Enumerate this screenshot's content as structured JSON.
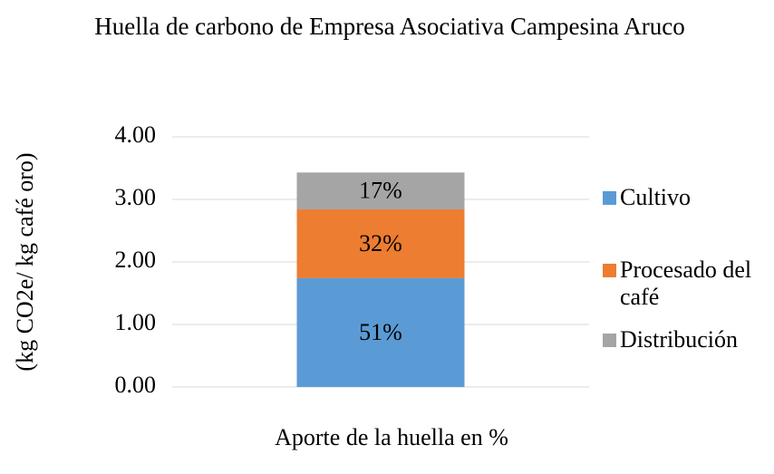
{
  "chart_data": {
    "type": "stacked_bar",
    "title": "Huella de carbono de Empresa Asociativa Campesina Aruco",
    "y_label": "(kg CO2e/ kg café oro)",
    "x_label": "Aporte de la huella en %",
    "categories": [
      null
    ],
    "series": [
      {
        "name": "Cultivo",
        "color": "#5b9bd5",
        "values": [
          1.74
        ],
        "value_labels": [
          "51%"
        ]
      },
      {
        "name": "Procesado del café",
        "color": "#ed7d31",
        "values": [
          1.1
        ],
        "value_labels": [
          "32%"
        ]
      },
      {
        "name": "Distribución",
        "color": "#a5a5a5",
        "values": [
          0.59
        ],
        "value_labels": [
          "17%"
        ]
      }
    ],
    "ylim": [
      0,
      4
    ],
    "yticks": [
      {
        "value": 0,
        "label": "0.00"
      },
      {
        "value": 1,
        "label": "1.00"
      },
      {
        "value": 2,
        "label": "2.00"
      },
      {
        "value": 3,
        "label": "3.00"
      },
      {
        "value": 4,
        "label": "4.00"
      }
    ],
    "grid": true,
    "legend": "right"
  }
}
